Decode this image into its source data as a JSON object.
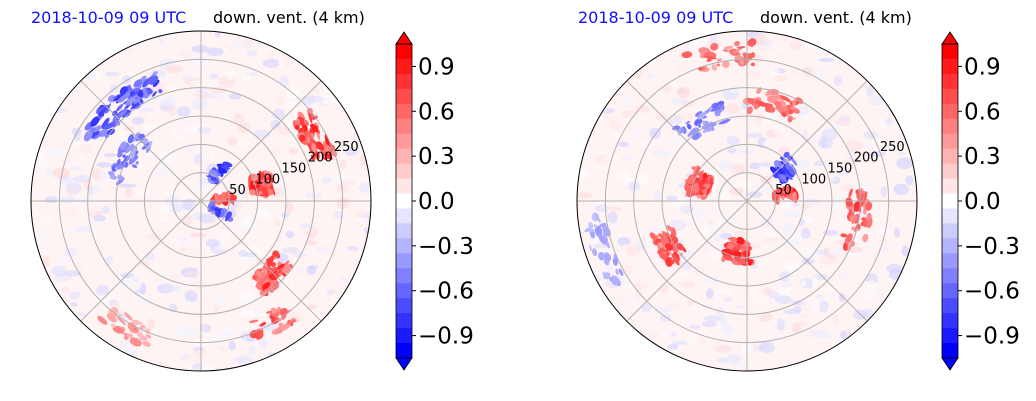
{
  "colors": {
    "positive": "#ff0000",
    "negative": "#0000ff",
    "grid": "#b0b0b0",
    "title_left": "#1010ff"
  },
  "chart_data": [
    {
      "type": "heatmap",
      "projection": "polar",
      "title_left": "2018-10-09 09 UTC",
      "title_right": "down. vent. (4 km)",
      "radial_ticks": [
        "50",
        "100",
        "150",
        "200",
        "250"
      ],
      "radial_tick_values": [
        50,
        100,
        150,
        200,
        250
      ],
      "colorbar": {
        "ticks": [
          "0.9",
          "0.6",
          "0.3",
          "0.0",
          "−0.3",
          "−0.6",
          "−0.9"
        ],
        "tick_values": [
          0.9,
          0.6,
          0.3,
          0.0,
          -0.3,
          -0.6,
          -0.9
        ],
        "range": [
          -1.05,
          1.05
        ],
        "extend": "both",
        "cmap": "bwr"
      },
      "grid": true
    },
    {
      "type": "heatmap",
      "projection": "polar",
      "title_left": "2018-10-09 09 UTC",
      "title_right": "down. vent. (4 km)",
      "radial_ticks": [
        "50",
        "100",
        "150",
        "200",
        "250"
      ],
      "radial_tick_values": [
        50,
        100,
        150,
        200,
        250
      ],
      "colorbar": {
        "ticks": [
          "0.9",
          "0.6",
          "0.3",
          "0.0",
          "−0.3",
          "−0.6",
          "−0.9"
        ],
        "tick_values": [
          0.9,
          0.6,
          0.3,
          0.0,
          -0.3,
          -0.6,
          -0.9
        ],
        "range": [
          -1.05,
          1.05
        ],
        "extend": "both",
        "cmap": "bwr"
      },
      "grid": true
    }
  ]
}
